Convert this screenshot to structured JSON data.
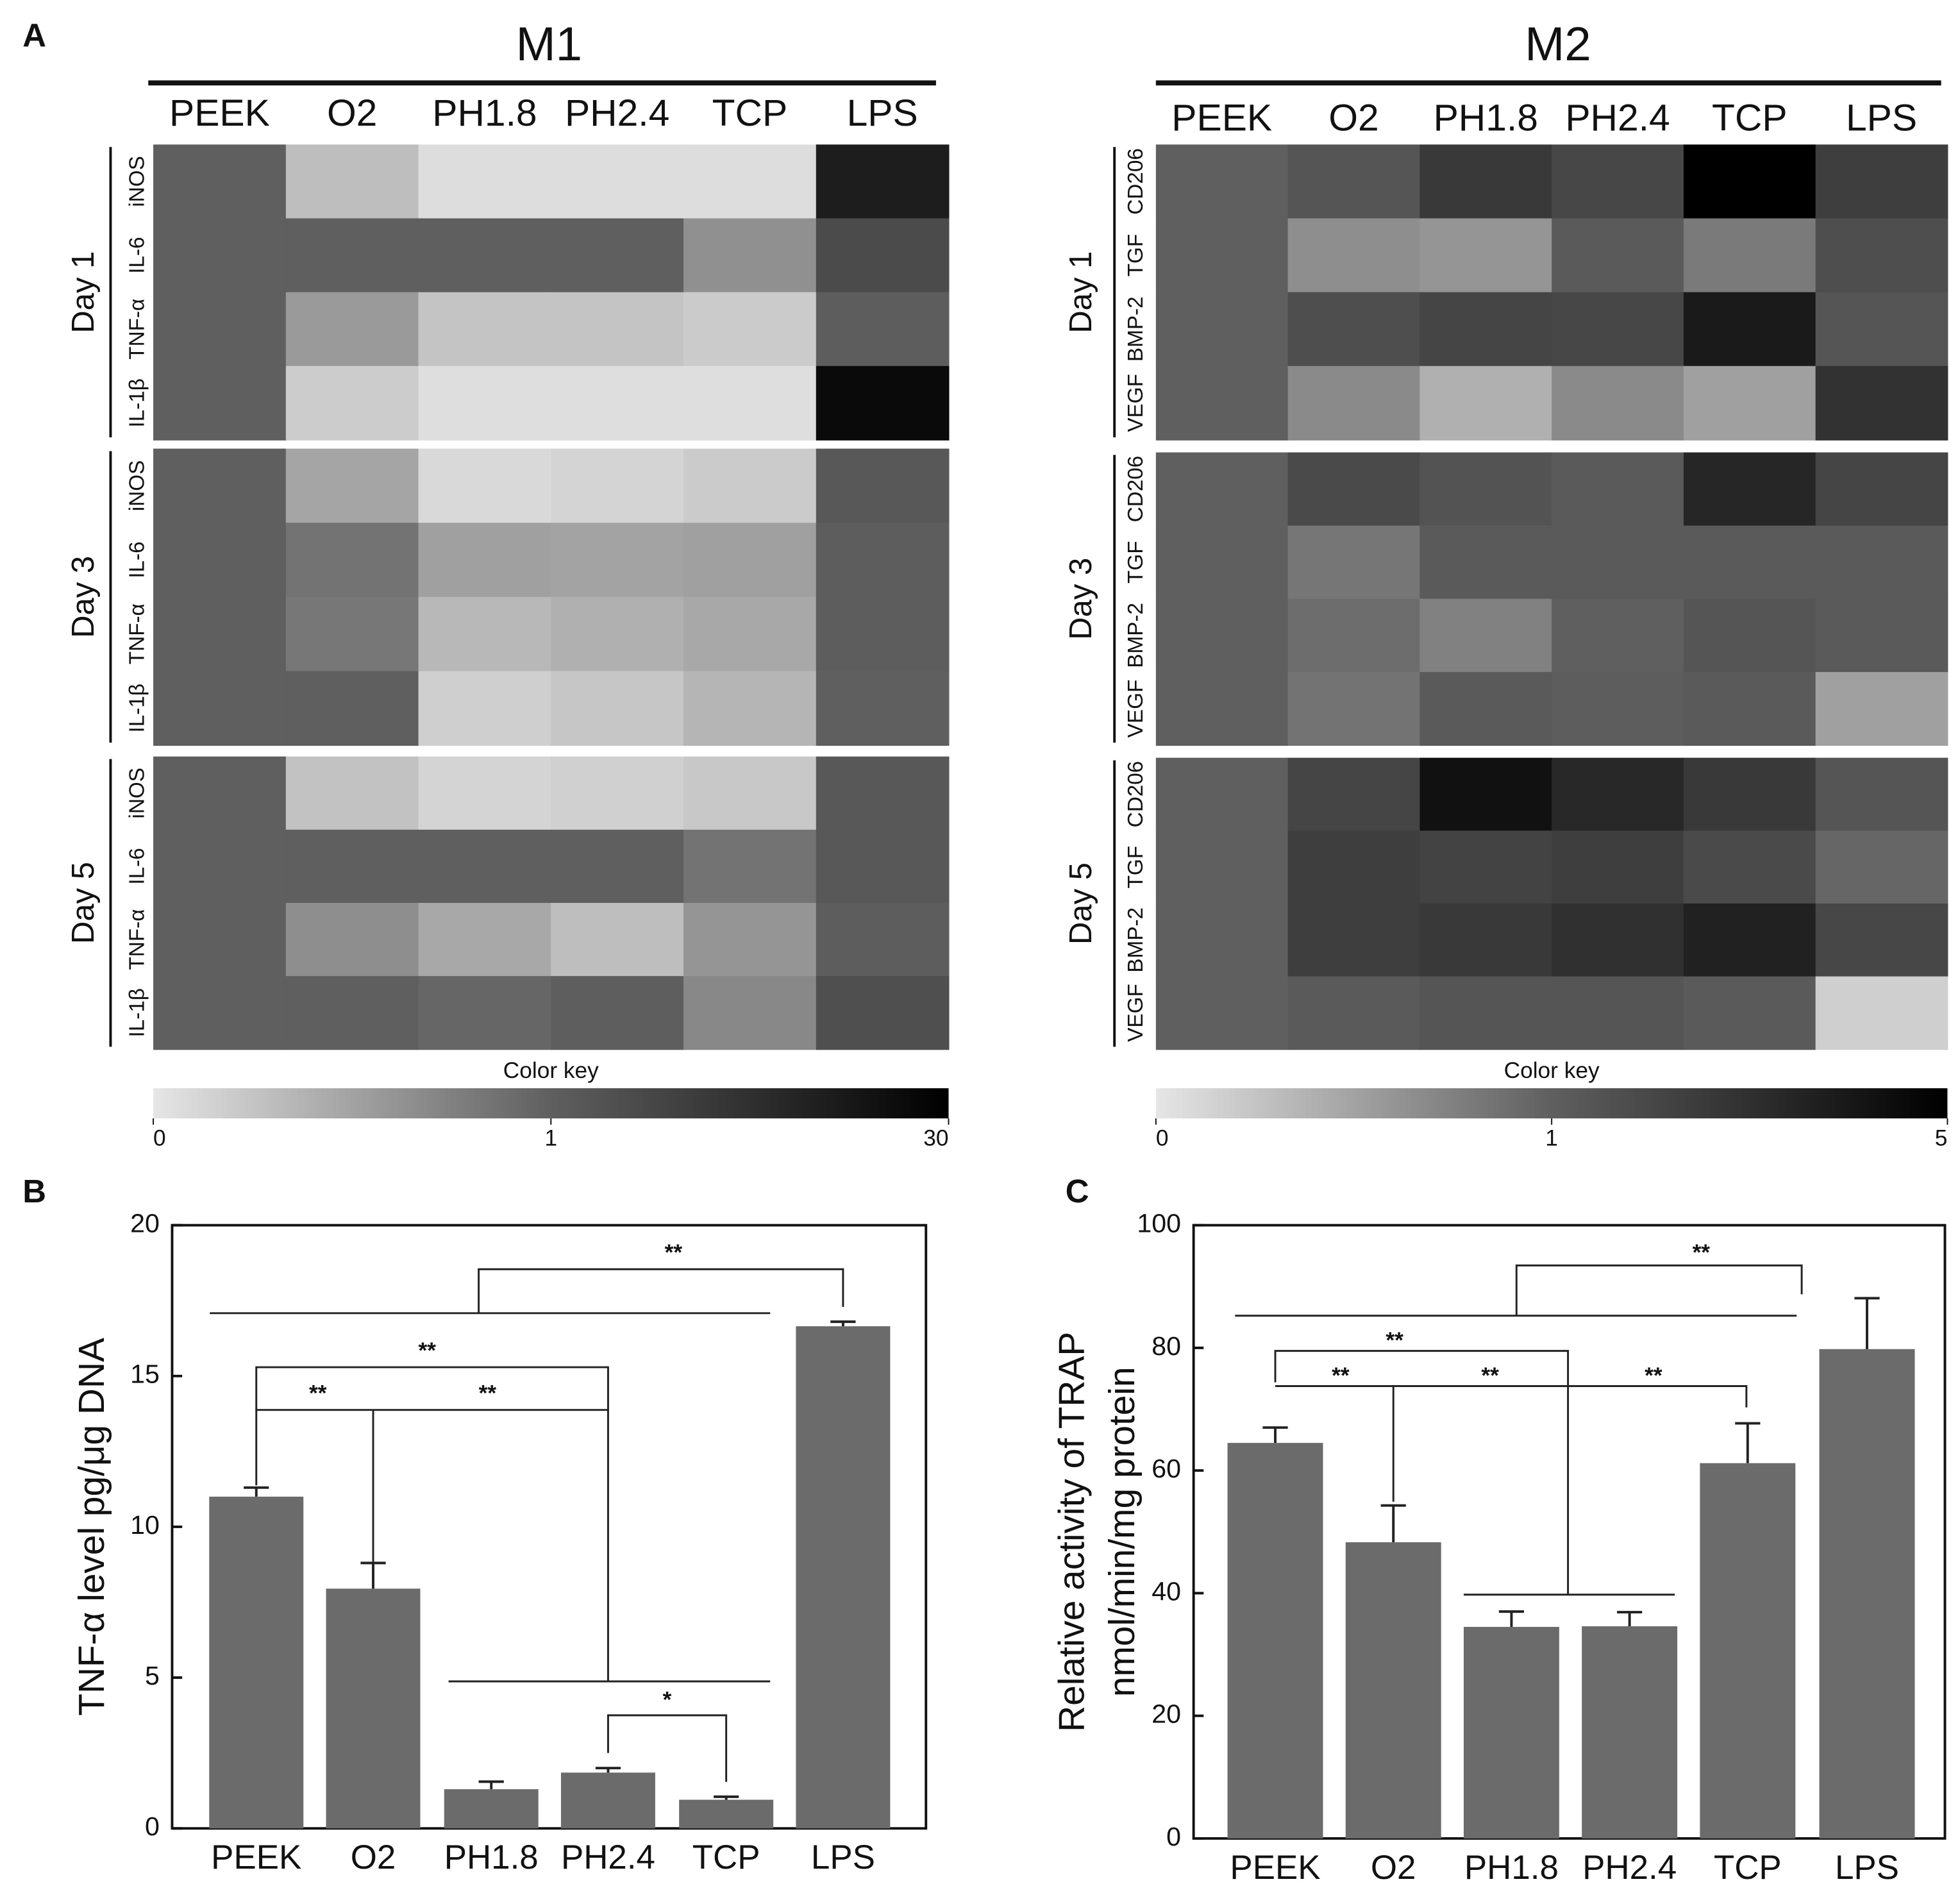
{
  "chart_data": [
    {
      "type": "heatmap",
      "panel": "A",
      "title": "M1",
      "columns": [
        "PEEK",
        "O2",
        "PH1.8",
        "PH2.4",
        "TCP",
        "LPS"
      ],
      "groups": [
        {
          "name": "Day 1",
          "rows": [
            "iNOS",
            "IL-6",
            "TNF-α",
            "IL-1β"
          ],
          "values": [
            [
              1,
              0.3,
              0.07,
              0.07,
              0.07,
              21
            ],
            [
              1,
              1,
              1,
              1,
              0.64,
              7
            ],
            [
              1,
              0.56,
              0.25,
              0.25,
              0.2,
              1.5
            ],
            [
              1,
              0.19,
              0.06,
              0.06,
              0.06,
              27
            ]
          ]
        },
        {
          "name": "Day 3",
          "rows": [
            "iNOS",
            "IL-6",
            "TNF-α",
            "IL-1β"
          ],
          "values": [
            [
              1,
              0.48,
              0.1,
              0.13,
              0.2,
              3
            ],
            [
              1,
              0.85,
              0.52,
              0.5,
              0.52,
              1.5
            ],
            [
              1,
              0.82,
              0.34,
              0.4,
              0.46,
              1.5
            ],
            [
              1,
              1,
              0.17,
              0.24,
              0.36,
              1
            ]
          ]
        },
        {
          "name": "Day 5",
          "rows": [
            "iNOS",
            "IL-6",
            "TNF-α",
            "IL-1β"
          ],
          "values": [
            [
              1,
              0.27,
              0.13,
              0.16,
              0.22,
              3
            ],
            [
              1,
              1,
              1,
              1,
              0.85,
              3
            ],
            [
              1,
              0.65,
              0.46,
              0.3,
              0.6,
              1.5
            ],
            [
              1,
              1,
              0.95,
              1.2,
              0.7,
              6
            ]
          ]
        }
      ],
      "color_key": {
        "label": "Color key",
        "ticks": [
          0,
          1,
          30
        ],
        "colors": [
          "#e6e6e6",
          "#5f5f5f",
          "#000000"
        ]
      }
    },
    {
      "type": "heatmap",
      "title": "M2",
      "columns": [
        "PEEK",
        "O2",
        "PH1.8",
        "PH2.4",
        "TCP",
        "LPS"
      ],
      "groups": [
        {
          "name": "Day 1",
          "rows": [
            "CD206",
            "TGF",
            "BMP-2",
            "VEGF"
          ],
          "values": [
            [
              1,
              1.4,
              2.6,
              2,
              5,
              2.4
            ],
            [
              1,
              0.65,
              0.6,
              1.2,
              0.8,
              1.7
            ],
            [
              1,
              1.7,
              2.1,
              2,
              3.9,
              1.4
            ],
            [
              1,
              0.68,
              0.4,
              0.68,
              0.52,
              2.9
            ]
          ]
        },
        {
          "name": "Day 3",
          "rows": [
            "CD206",
            "TGF",
            "BMP-2",
            "VEGF"
          ],
          "values": [
            [
              1,
              1.9,
              1.5,
              1.2,
              3.4,
              2.1
            ],
            [
              1,
              0.83,
              1.2,
              1.2,
              1.2,
              1.2
            ],
            [
              1,
              0.9,
              0.75,
              1,
              1.4,
              1.2
            ],
            [
              1,
              0.85,
              1.2,
              1.1,
              1.2,
              0.52
            ]
          ]
        },
        {
          "name": "Day 5",
          "rows": [
            "CD206",
            "TGF",
            "BMP-2",
            "VEGF"
          ],
          "values": [
            [
              1,
              2.1,
              4.3,
              3.3,
              2.6,
              1.4
            ],
            [
              1,
              2.4,
              2.2,
              2.4,
              1.9,
              0.95
            ],
            [
              1,
              2.4,
              2.6,
              3,
              3.6,
              2
            ],
            [
              1,
              1.2,
              1.4,
              1.4,
              1.2,
              0.17
            ]
          ]
        }
      ],
      "color_key": {
        "label": "Color key",
        "ticks": [
          0,
          1,
          5
        ],
        "colors": [
          "#e6e6e6",
          "#5f5f5f",
          "#000000"
        ]
      }
    },
    {
      "type": "bar",
      "panel": "B",
      "ylabel": [
        "TNF-α level pg/μg DNA"
      ],
      "categories": [
        "PEEK",
        "O2",
        "PH1.8",
        "PH2.4",
        "TCP",
        "LPS"
      ],
      "values": [
        11,
        7.95,
        1.3,
        1.85,
        0.95,
        16.65
      ],
      "errors": [
        0.3,
        0.85,
        0.25,
        0.15,
        0.1,
        0.15
      ],
      "color": "#6b6b6b",
      "ylim": [
        0,
        20
      ],
      "yticks": [
        0,
        5,
        10,
        15,
        20
      ],
      "annotations": [
        "**",
        "**",
        "**",
        "**",
        "*"
      ]
    },
    {
      "type": "bar",
      "panel": "C",
      "ylabel": [
        "Relative activity of TRAP",
        "nmol/min/mg protein"
      ],
      "categories": [
        "PEEK",
        "O2",
        "PH1.8",
        "PH2.4",
        "TCP",
        "LPS"
      ],
      "values": [
        64.5,
        48.3,
        34.5,
        34.6,
        61.2,
        79.8
      ],
      "errors": [
        2.5,
        6,
        2.5,
        2.3,
        6.5,
        8.3
      ],
      "color": "#6b6b6b",
      "ylim": [
        0,
        100
      ],
      "yticks": [
        0,
        20,
        40,
        60,
        80,
        100
      ],
      "annotations": [
        "**",
        "**",
        "**",
        "**",
        "**"
      ]
    }
  ]
}
